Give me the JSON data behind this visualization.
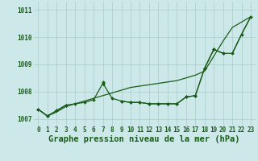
{
  "x": [
    0,
    1,
    2,
    3,
    4,
    5,
    6,
    7,
    8,
    9,
    10,
    11,
    12,
    13,
    14,
    15,
    16,
    17,
    18,
    19,
    20,
    21,
    22,
    23
  ],
  "line1": [
    1007.35,
    1007.1,
    1007.25,
    1007.45,
    1007.55,
    1007.65,
    1007.75,
    1007.85,
    1007.95,
    1008.05,
    1008.15,
    1008.2,
    1008.25,
    1008.3,
    1008.35,
    1008.4,
    1008.5,
    1008.6,
    1008.75,
    1009.3,
    1009.85,
    1010.35,
    1010.55,
    1010.75
  ],
  "line2": [
    1007.35,
    1007.1,
    1007.3,
    1007.5,
    1007.55,
    1007.6,
    1007.7,
    1008.3,
    1007.75,
    1007.65,
    1007.6,
    1007.6,
    1007.55,
    1007.55,
    1007.55,
    1007.55,
    1007.8,
    1007.85,
    1008.85,
    1009.55,
    1009.4,
    1009.4,
    1010.1,
    1010.75
  ],
  "line3": [
    1007.35,
    1007.1,
    1007.3,
    1007.5,
    null,
    null,
    null,
    1008.3,
    null,
    null,
    null,
    null,
    null,
    null,
    null,
    null,
    null,
    null,
    1008.85,
    1009.55,
    1009.4,
    null,
    null,
    null
  ],
  "line4": [
    1007.35,
    null,
    null,
    1007.5,
    null,
    null,
    null,
    null,
    null,
    null,
    null,
    null,
    null,
    null,
    null,
    null,
    null,
    null,
    null,
    null,
    null,
    1009.4,
    1010.1,
    1010.75
  ],
  "line5": [
    null,
    null,
    null,
    null,
    null,
    null,
    null,
    1008.35,
    null,
    1007.65,
    1007.6,
    1007.6,
    1007.55,
    1007.55,
    1007.55,
    1007.55,
    1007.8,
    1007.85,
    1008.85,
    null,
    null,
    null,
    null,
    null
  ],
  "bg_color": "#cce8e8",
  "grid_color": "#aacaca",
  "line_color": "#1a5c1a",
  "title": "Graphe pression niveau de la mer (hPa)",
  "ylim": [
    1006.75,
    1011.3
  ],
  "yticks": [
    1007,
    1008,
    1009,
    1010,
    1011
  ],
  "xticks": [
    0,
    1,
    2,
    3,
    4,
    5,
    6,
    7,
    8,
    9,
    10,
    11,
    12,
    13,
    14,
    15,
    16,
    17,
    18,
    19,
    20,
    21,
    22,
    23
  ],
  "marker": "D",
  "markersize": 2.0,
  "linewidth": 0.9,
  "title_fontsize": 7.5,
  "tick_fontsize": 5.5
}
